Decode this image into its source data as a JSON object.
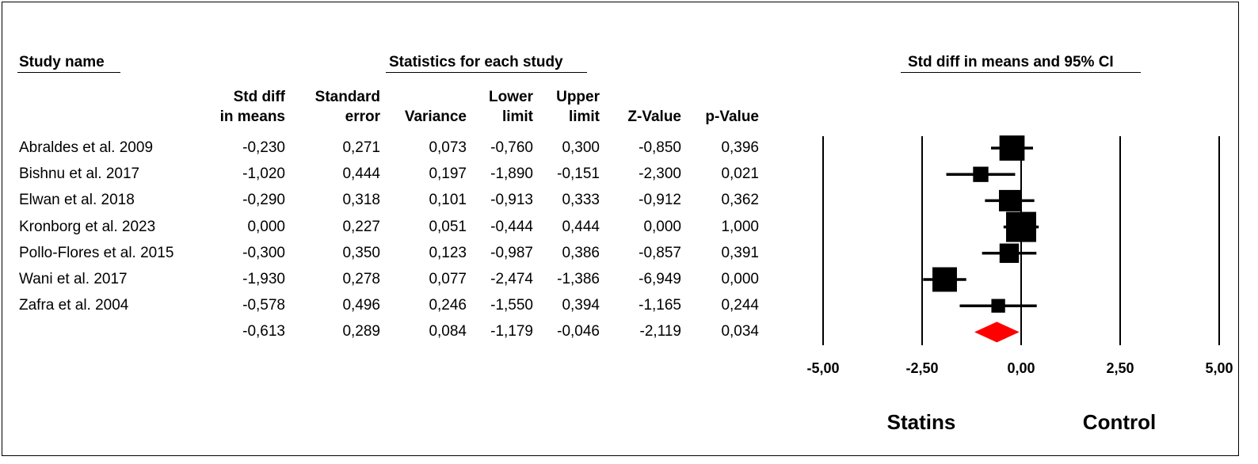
{
  "headers": {
    "study_name": "Study name",
    "statistics": "Statistics for each study",
    "ci": "Std diff in means and 95% CI"
  },
  "columns": [
    {
      "line1": "Std diff",
      "line2": "in means"
    },
    {
      "line1": "Standard",
      "line2": "error"
    },
    {
      "line1": "",
      "line2": "Variance"
    },
    {
      "line1": "Lower",
      "line2": "limit"
    },
    {
      "line1": "Upper",
      "line2": "limit"
    },
    {
      "line1": "",
      "line2": "Z-Value"
    },
    {
      "line1": "",
      "line2": "p-Value"
    }
  ],
  "rows": [
    {
      "study": "Abraldes et al. 2009",
      "values": [
        "-0,230",
        "0,271",
        "0,073",
        "-0,760",
        "0,300",
        "-0,850",
        "0,396"
      ]
    },
    {
      "study": "Bishnu et al. 2017",
      "values": [
        "-1,020",
        "0,444",
        "0,197",
        "-1,890",
        "-0,151",
        "-2,300",
        "0,021"
      ]
    },
    {
      "study": "Elwan et al. 2018",
      "values": [
        "-0,290",
        "0,318",
        "0,101",
        "-0,913",
        "0,333",
        "-0,912",
        "0,362"
      ]
    },
    {
      "study": "Kronborg et al. 2023",
      "values": [
        "0,000",
        "0,227",
        "0,051",
        "-0,444",
        "0,444",
        "0,000",
        "1,000"
      ]
    },
    {
      "study": "Pollo-Flores et al. 2015",
      "values": [
        "-0,300",
        "0,350",
        "0,123",
        "-0,987",
        "0,386",
        "-0,857",
        "0,391"
      ]
    },
    {
      "study": "Wani et al. 2017",
      "values": [
        "-1,930",
        "0,278",
        "0,077",
        "-2,474",
        "-1,386",
        "-6,949",
        "0,000"
      ]
    },
    {
      "study": "Zafra et al. 2004",
      "values": [
        "-0,578",
        "0,496",
        "0,246",
        "-1,550",
        "0,394",
        "-1,165",
        "0,244"
      ]
    }
  ],
  "summary": {
    "study": "",
    "values": [
      "-0,613",
      "0,289",
      "0,084",
      "-1,179",
      "-0,046",
      "-2,119",
      "0,034"
    ]
  },
  "chart_data": {
    "type": "forest",
    "title": "Std diff in means and 95% CI",
    "xlim": [
      -5,
      5
    ],
    "ticks": [
      -5,
      -2.5,
      0,
      2.5,
      5
    ],
    "tick_labels": [
      "-5,00",
      "-2,50",
      "0,00",
      "2,50",
      "5,00"
    ],
    "left_label": "Statins",
    "right_label": "Control",
    "studies": [
      {
        "name": "Abraldes et al. 2009",
        "estimate": -0.23,
        "lower": -0.76,
        "upper": 0.3,
        "variance": 0.073
      },
      {
        "name": "Bishnu et al. 2017",
        "estimate": -1.02,
        "lower": -1.89,
        "upper": -0.151,
        "variance": 0.197
      },
      {
        "name": "Elwan et al. 2018",
        "estimate": -0.29,
        "lower": -0.913,
        "upper": 0.333,
        "variance": 0.101
      },
      {
        "name": "Kronborg et al. 2023",
        "estimate": 0.0,
        "lower": -0.444,
        "upper": 0.444,
        "variance": 0.051
      },
      {
        "name": "Pollo-Flores et al. 2015",
        "estimate": -0.3,
        "lower": -0.987,
        "upper": 0.386,
        "variance": 0.123
      },
      {
        "name": "Wani et al. 2017",
        "estimate": -1.93,
        "lower": -2.474,
        "upper": -1.386,
        "variance": 0.077
      },
      {
        "name": "Zafra et al. 2004",
        "estimate": -0.578,
        "lower": -1.55,
        "upper": 0.394,
        "variance": 0.246
      }
    ],
    "summary": {
      "estimate": -0.613,
      "lower": -1.179,
      "upper": -0.046
    },
    "colors": {
      "markers": "#000000",
      "summary_diamond": "#ff0000",
      "lines": "#000000"
    }
  }
}
